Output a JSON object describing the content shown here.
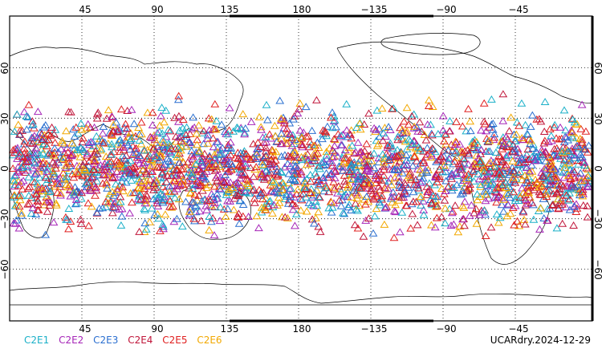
{
  "map": {
    "top_lon_labels": [
      "45",
      "90",
      "135",
      "180",
      "−135",
      "−90",
      "−45"
    ],
    "bottom_lon_labels": [
      "45",
      "90",
      "135",
      "180",
      "−135",
      "−90",
      "−45"
    ],
    "left_lat_labels": [
      "60",
      "30",
      "0",
      "−30",
      "−60"
    ],
    "right_lat_labels": [
      "60",
      "30",
      "0",
      "−30",
      "−60"
    ],
    "marker_symbol": "open-triangle",
    "coverage_lat_range": [
      -48,
      47
    ]
  },
  "legend": {
    "items": [
      {
        "label": "C2E1",
        "color": "#1bb0c8"
      },
      {
        "label": "C2E2",
        "color": "#a626b8"
      },
      {
        "label": "C2E3",
        "color": "#2a6fd0"
      },
      {
        "label": "C2E4",
        "color": "#c0163a"
      },
      {
        "label": "C2E5",
        "color": "#e02020"
      },
      {
        "label": "C2E6",
        "color": "#f2a800"
      }
    ]
  },
  "footer": {
    "label": "UCARdry.2024-12-29"
  }
}
